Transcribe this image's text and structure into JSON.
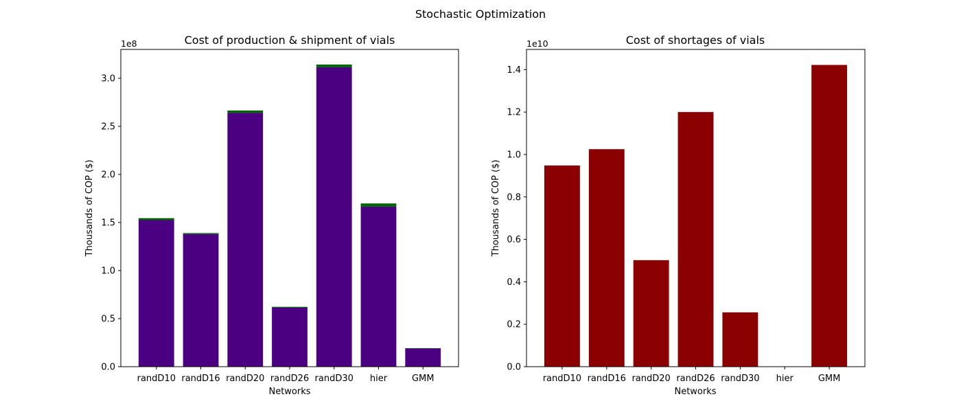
{
  "figure": {
    "suptitle": "Stochastic Optimization"
  },
  "chart_data": [
    {
      "type": "bar",
      "stacked": true,
      "title": "Cost of production & shipment of vials",
      "xlabel": "Networks",
      "ylabel": "Thousands of COP ($)",
      "offset_label": "1e8",
      "categories": [
        "randD10",
        "randD16",
        "randD20",
        "randD26",
        "randD30",
        "hier",
        "GMM"
      ],
      "ylim": [
        0,
        330000000
      ],
      "yticks": [
        0,
        50000000,
        100000000,
        150000000,
        200000000,
        250000000,
        300000000
      ],
      "ytick_labels": [
        "0.0",
        "0.5",
        "1.0",
        "1.5",
        "2.0",
        "2.5",
        "3.0"
      ],
      "grid": false,
      "series": [
        {
          "color": "#4b0082",
          "values": [
            152500000,
            138000000,
            264000000,
            61500000,
            311500000,
            166500000,
            19000000
          ]
        },
        {
          "color": "#006400",
          "values": [
            2000000,
            1000000,
            2500000,
            800000,
            2800000,
            3300000,
            300000
          ]
        }
      ]
    },
    {
      "type": "bar",
      "title": "Cost of shortages of vials",
      "xlabel": "Networks",
      "ylabel": "Thousands of COP ($)",
      "offset_label": "1e10",
      "categories": [
        "randD10",
        "randD16",
        "randD20",
        "randD26",
        "randD30",
        "hier",
        "GMM"
      ],
      "ylim": [
        0,
        14950000000
      ],
      "yticks": [
        0,
        2000000000,
        4000000000,
        6000000000,
        8000000000,
        10000000000,
        12000000000,
        14000000000
      ],
      "ytick_labels": [
        "0.0",
        "0.2",
        "0.4",
        "0.6",
        "0.8",
        "1.0",
        "1.2",
        "1.4"
      ],
      "grid": false,
      "series": [
        {
          "color": "#8b0000",
          "values": [
            9480000000,
            10250000000,
            5020000000,
            12000000000,
            2560000000,
            0,
            14220000000
          ]
        }
      ]
    }
  ]
}
